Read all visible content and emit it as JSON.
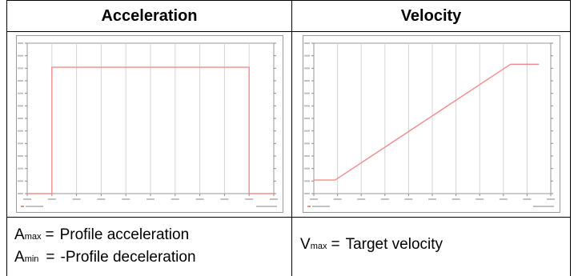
{
  "table": {
    "headers": [
      "Acceleration",
      "Velocity"
    ],
    "notes": {
      "acceleration": [
        {
          "symbol": "A",
          "subscript": "max",
          "equals": "=",
          "text": "Profile acceleration"
        },
        {
          "symbol": "A",
          "subscript": "min",
          "equals": "=",
          "text": "-Profile deceleration"
        }
      ],
      "velocity": [
        {
          "symbol": "V",
          "subscript": "max",
          "equals": "=",
          "text": "Target velocity"
        }
      ]
    }
  },
  "chart_data": [
    {
      "type": "line",
      "title": "",
      "xlabel": "",
      "ylabel": "",
      "grid": true,
      "xlim": [
        0,
        10
      ],
      "ylim": [
        0,
        10
      ],
      "series": [
        {
          "x": [
            0,
            1.0,
            1.0,
            9.0,
            9.0,
            10
          ],
          "y": [
            0,
            0,
            8.4,
            8.4,
            0,
            0
          ]
        }
      ],
      "line_color": "#f08c8c"
    },
    {
      "type": "line",
      "title": "",
      "xlabel": "",
      "ylabel": "",
      "grid": true,
      "xlim": [
        0,
        10
      ],
      "ylim": [
        0,
        10
      ],
      "series": [
        {
          "x": [
            0,
            0.9,
            8.3,
            9.5
          ],
          "y": [
            0.9,
            0.9,
            8.6,
            8.6
          ]
        }
      ],
      "line_color": "#f08c8c"
    }
  ]
}
